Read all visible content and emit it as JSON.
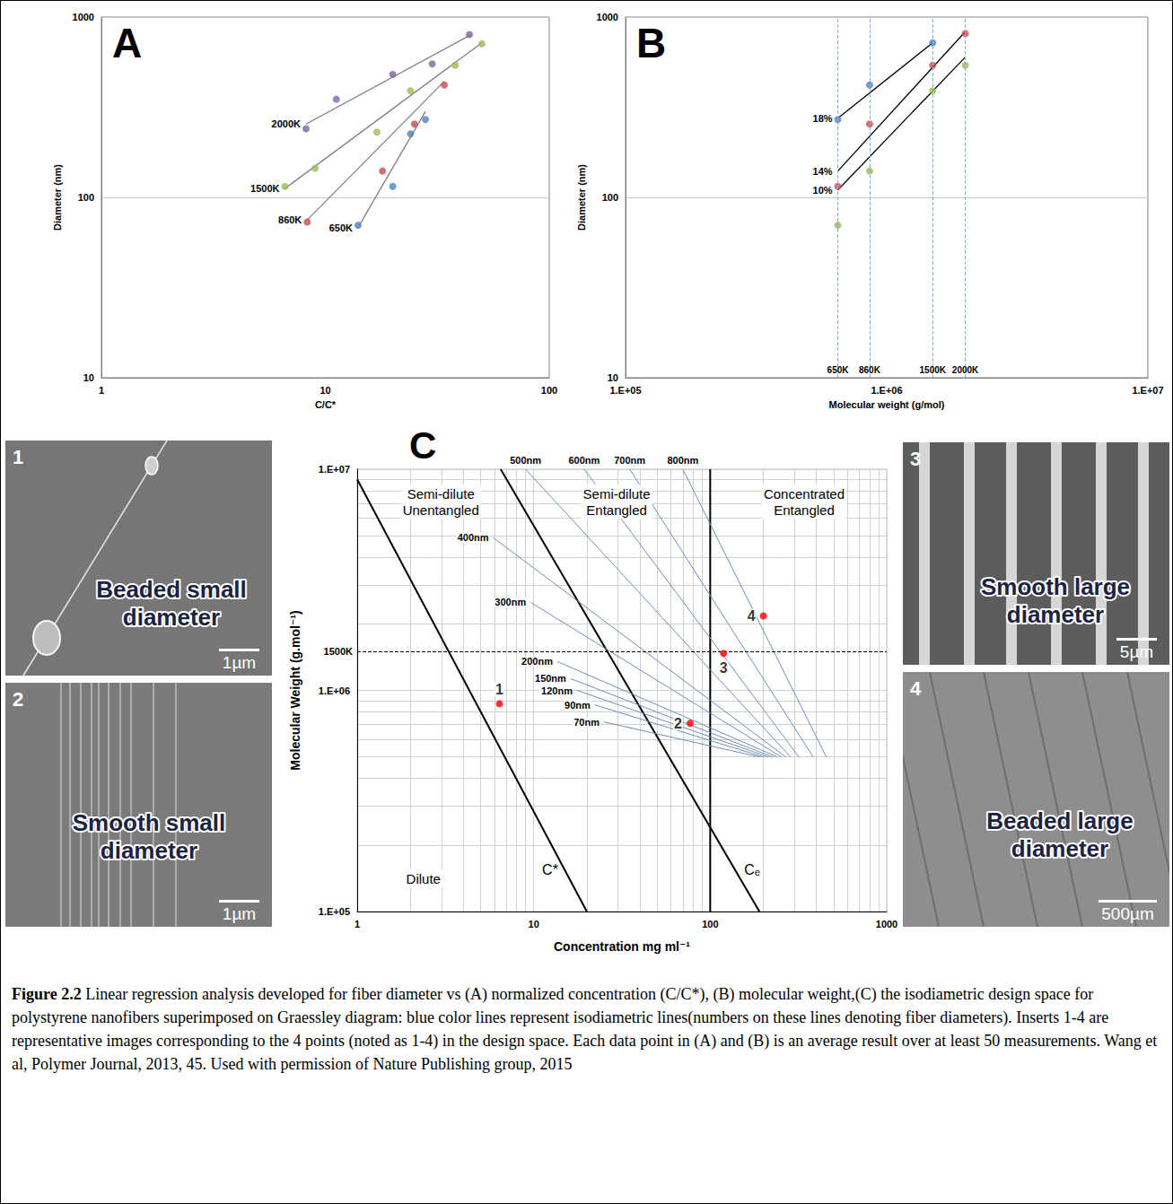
{
  "chart_data": [
    {
      "panel": "A",
      "type": "scatter",
      "x_label": "C/C*",
      "y_label": "Diameter (nm)",
      "log": true,
      "xlim": [
        1,
        100
      ],
      "ylim": [
        10,
        1000
      ],
      "xticks": [
        1,
        10,
        100
      ],
      "yticks": [
        10,
        100,
        1000
      ],
      "grid": "y",
      "marker": "circle",
      "series": [
        {
          "name": "2000K",
          "color": "#8064a2",
          "x": [
            8.2,
            11.2,
            20,
            30,
            44
          ],
          "values": [
            240,
            350,
            480,
            550,
            800
          ],
          "fit": {
            "color": "#808080",
            "x": [
              8.2,
              44
            ],
            "values": [
              255,
              790
            ]
          }
        },
        {
          "name": "1500K",
          "color": "#9bbb59",
          "x": [
            6.6,
            9,
            17,
            24,
            38,
            50
          ],
          "values": [
            115,
            145,
            230,
            390,
            540,
            710
          ],
          "fit": {
            "color": "#808080",
            "x": [
              6.6,
              50
            ],
            "values": [
              112,
              720
            ]
          }
        },
        {
          "name": "860K",
          "color": "#c0504d",
          "x": [
            8.3,
            18,
            25,
            34
          ],
          "values": [
            73,
            140,
            255,
            420
          ],
          "fit": {
            "color": "#808080",
            "x": [
              8.3,
              34
            ],
            "values": [
              75,
              440
            ]
          }
        },
        {
          "name": "650K",
          "color": "#4f81bd",
          "x": [
            14,
            20,
            24,
            28
          ],
          "values": [
            70,
            115,
            225,
            270
          ],
          "fit": {
            "color": "#808080",
            "x": [
              14,
              28
            ],
            "values": [
              68,
              300
            ]
          }
        }
      ]
    },
    {
      "panel": "B",
      "type": "scatter",
      "x_label": "Molecular weight (g/mol)",
      "y_label": "Diameter (nm)",
      "log": true,
      "xlim": [
        100000,
        10000000
      ],
      "xticks": [
        {
          "value": 100000,
          "label": "1.E+05"
        },
        {
          "value": 1000000,
          "label": "1.E+06"
        },
        {
          "value": 10000000,
          "label": "1.E+07"
        }
      ],
      "ylim": [
        10,
        1000
      ],
      "yticks": [
        10,
        100,
        1000
      ],
      "grid": "y",
      "marker": "circle",
      "reference_lines": {
        "axis": "x",
        "line_style": "dashed",
        "color": "#8eaadb",
        "lines": [
          {
            "value": 650000,
            "label": "650K"
          },
          {
            "value": 860000,
            "label": "860K"
          },
          {
            "value": 1500000,
            "label": "1500K"
          },
          {
            "value": 2000000,
            "label": "2000K"
          }
        ]
      },
      "series": [
        {
          "name": "18%",
          "color": "#4f81bd",
          "x": [
            650000,
            860000,
            1500000
          ],
          "values": [
            270,
            420,
            720
          ],
          "fit": {
            "color": "#000000",
            "x": [
              650000,
              1500000
            ],
            "values": [
              275,
              720
            ]
          }
        },
        {
          "name": "14%",
          "color": "#c0504d",
          "x": [
            650000,
            860000,
            1500000,
            2000000
          ],
          "values": [
            115,
            255,
            540,
            810
          ],
          "fit": {
            "color": "#000000",
            "x": [
              650000,
              2000000
            ],
            "values": [
              140,
              830
            ]
          }
        },
        {
          "name": "10%",
          "color": "#9bbb59",
          "x": [
            650000,
            860000,
            1500000,
            2000000
          ],
          "values": [
            70,
            140,
            390,
            540
          ],
          "fit": {
            "color": "#000000",
            "x": [
              650000,
              2000000
            ],
            "values": [
              110,
              600
            ]
          }
        }
      ]
    },
    {
      "panel": "C",
      "type": "line",
      "x_label": "Concentration mg ml⁻¹",
      "y_label": "Molecular Weight (g.mol⁻¹)",
      "log": true,
      "xlim": [
        1,
        1000
      ],
      "ylim": [
        100000,
        10000000
      ],
      "xticks": [
        1,
        10,
        100,
        1000
      ],
      "yticks": [
        {
          "value": 100000,
          "label": "1.E+05"
        },
        {
          "value": 1000000,
          "label": "1.E+06"
        },
        {
          "value": 10000000,
          "label": "1.E+07"
        }
      ],
      "grid": true,
      "color": "#6f8fb8",
      "regions": [
        "Semi-dilute Unentangled",
        "Semi-dilute Entangled",
        "Concentrated Entangled",
        "Dilute"
      ],
      "boundaries": [
        {
          "label": "C*",
          "color": "#000000",
          "x": [
            1,
            20
          ],
          "values": [
            9000000,
            100000
          ]
        },
        {
          "color": "#000000",
          "x": [
            6.5,
            190
          ],
          "values": [
            10000000,
            100000
          ]
        },
        {
          "label": "Cₑ",
          "color": "#000000",
          "x": [
            100,
            100
          ],
          "values": [
            100000,
            10000000
          ]
        }
      ],
      "reference_lines": {
        "axis": "y",
        "line_style": "dashed",
        "color": "#000000",
        "lines": [
          {
            "value": 1500000,
            "label": "1500K"
          }
        ]
      },
      "series": [
        {
          "name": "800nm",
          "x": [
            70,
            455
          ],
          "values": [
            10000000,
            500000
          ]
        },
        {
          "name": "700nm",
          "x": [
            35,
            383
          ],
          "values": [
            10000000,
            500000
          ]
        },
        {
          "name": "600nm",
          "x": [
            19.3,
            318
          ],
          "values": [
            10000000,
            500000
          ]
        },
        {
          "name": "500nm",
          "x": [
            9,
            285
          ],
          "values": [
            10000000,
            500000
          ]
        },
        {
          "name": "400nm",
          "x": [
            5.9,
            268
          ],
          "values": [
            4900000,
            500000
          ]
        },
        {
          "name": "300nm",
          "x": [
            9.6,
            253
          ],
          "values": [
            2500000,
            500000
          ]
        },
        {
          "name": "200nm",
          "x": [
            13.6,
            240
          ],
          "values": [
            1350000,
            500000
          ]
        },
        {
          "name": "150nm",
          "x": [
            16.2,
            226
          ],
          "values": [
            1130000,
            500000
          ]
        },
        {
          "name": "120nm",
          "x": [
            17.6,
            213
          ],
          "values": [
            1000000,
            500000
          ]
        },
        {
          "name": "90nm",
          "x": [
            22.2,
            200
          ],
          "values": [
            860000,
            500000
          ]
        },
        {
          "name": "70nm",
          "x": [
            25,
            190
          ],
          "values": [
            720000,
            500000
          ]
        }
      ],
      "points": {
        "color": "#ff0000",
        "marker": "circle",
        "labels": [
          "1",
          "2",
          "3",
          "4"
        ],
        "x": [
          6.4,
          77,
          119,
          200
        ],
        "values": [
          870000,
          710000,
          1470000,
          2170000
        ]
      }
    }
  ],
  "images": [
    {
      "number": "1",
      "label": "Beaded small diameter",
      "scale_bar": "1µm"
    },
    {
      "number": "2",
      "label": "Smooth small diameter",
      "scale_bar": "1µm"
    },
    {
      "number": "3",
      "label": "Smooth large diameter",
      "scale_bar": "5µm"
    },
    {
      "number": "4",
      "label": "Beaded large diameter",
      "scale_bar": "500µm"
    }
  ],
  "caption": {
    "label": "Figure 2.2",
    "text": "Linear regression analysis developed for fiber diameter vs (A) normalized concentration (C/C*), (B) molecular weight,(C) the isodiametric design space for polystyrene nanofibers superimposed on Graessley diagram: blue color lines represent isodiametric lines(numbers on these lines denoting fiber diameters). Inserts 1-4 are representative images corresponding to the 4 points (noted as 1-4) in the design space. Each data point in (A) and (B) is an average result over at least 50 measurements. Wang et al, Polymer Journal, 2013, 45. Used with permission of Nature Publishing group, 2015"
  }
}
